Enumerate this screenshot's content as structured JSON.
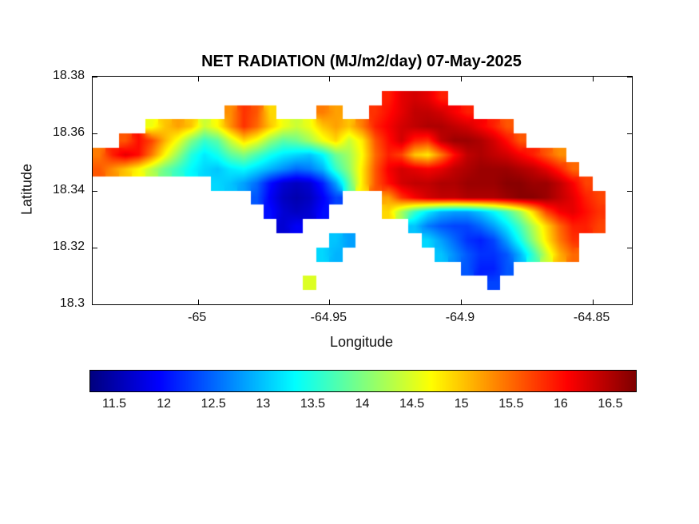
{
  "figure": {
    "background": "#ffffff"
  },
  "chart_data": {
    "type": "heatmap",
    "title": "NET RADIATION (MJ/m2/day) 07-May-2025",
    "xlabel": "Longitude",
    "ylabel": "Latitude",
    "xlim": [
      -65.04,
      -64.835
    ],
    "ylim": [
      18.3,
      18.38
    ],
    "xticks": [
      -65,
      -64.95,
      -64.9,
      -64.85
    ],
    "xtick_labels": [
      "-65",
      "-64.95",
      "-64.9",
      "-64.85"
    ],
    "yticks": [
      18.3,
      18.32,
      18.34,
      18.36,
      18.38
    ],
    "ytick_labels": [
      "18.3",
      "18.32",
      "18.34",
      "18.36",
      "18.38"
    ],
    "colormap": "jet",
    "vmin": 11.25,
    "vmax": 16.75,
    "colorbar_ticks": [
      11.5,
      12,
      12.5,
      13,
      13.5,
      14,
      14.5,
      15,
      15.5,
      16,
      16.5
    ],
    "colorbar_tick_labels": [
      "11.5",
      "12",
      "12.5",
      "13",
      "13.5",
      "14",
      "14.5",
      "15",
      "15.5",
      "16",
      "16.5"
    ],
    "grid": {
      "comment": "net radiation MJ/m2/day on lon-lat grid, null = water",
      "lon_start": -65.0375,
      "lon_step": 0.005,
      "lat_start": 18.3725,
      "lat_step": -0.005,
      "values": [
        [
          null,
          null,
          null,
          null,
          null,
          null,
          null,
          null,
          null,
          null,
          null,
          null,
          null,
          null,
          null,
          null,
          null,
          null,
          null,
          null,
          null,
          null,
          15.9,
          16.2,
          16.3,
          16.2,
          15.9,
          null,
          null,
          null,
          null,
          null,
          null,
          null,
          null,
          null,
          null,
          null,
          null,
          null,
          null
        ],
        [
          null,
          null,
          null,
          null,
          null,
          null,
          null,
          null,
          null,
          null,
          15.3,
          15.8,
          15.6,
          14.9,
          null,
          null,
          null,
          15.4,
          15.2,
          null,
          null,
          15.8,
          16.0,
          16.2,
          16.4,
          16.4,
          16.3,
          16.1,
          15.9,
          null,
          null,
          null,
          null,
          null,
          null,
          null,
          null,
          null,
          null,
          null,
          null
        ],
        [
          null,
          null,
          null,
          null,
          14.6,
          15.0,
          15.2,
          15.0,
          14.4,
          14.7,
          15.3,
          15.8,
          15.5,
          15.0,
          14.6,
          14.4,
          14.6,
          15.0,
          15.2,
          15.0,
          15.4,
          15.9,
          16.1,
          16.3,
          16.4,
          16.5,
          16.5,
          16.4,
          16.3,
          16.1,
          15.9,
          15.6,
          null,
          null,
          null,
          null,
          null,
          null,
          null,
          null,
          null
        ],
        [
          null,
          null,
          15.6,
          16.0,
          15.7,
          15.1,
          14.6,
          14.0,
          13.6,
          13.8,
          14.4,
          14.9,
          14.6,
          14.1,
          13.8,
          13.9,
          14.2,
          14.6,
          14.9,
          14.4,
          14.8,
          15.6,
          16.0,
          16.3,
          15.9,
          15.8,
          16.4,
          16.6,
          16.6,
          16.5,
          16.3,
          16.0,
          15.6,
          null,
          null,
          null,
          null,
          null,
          null,
          null,
          null
        ],
        [
          15.4,
          15.9,
          16.2,
          16.0,
          15.4,
          14.7,
          14.1,
          13.5,
          13.2,
          13.4,
          13.8,
          14.0,
          13.7,
          13.4,
          13.2,
          13.1,
          13.0,
          13.3,
          13.9,
          14.2,
          14.7,
          15.5,
          15.9,
          15.7,
          15.0,
          14.8,
          15.4,
          16.0,
          16.4,
          16.5,
          16.4,
          16.3,
          16.1,
          15.9,
          15.6,
          15.3,
          null,
          null,
          null,
          null,
          null
        ],
        [
          15.6,
          15.3,
          15.0,
          14.7,
          14.3,
          13.9,
          13.6,
          13.3,
          13.1,
          13.0,
          13.2,
          13.3,
          13.1,
          12.9,
          12.7,
          12.5,
          12.6,
          12.9,
          13.6,
          14.1,
          14.8,
          15.6,
          16.1,
          16.3,
          16.2,
          16.1,
          16.2,
          16.4,
          16.5,
          16.6,
          16.6,
          16.6,
          16.5,
          16.4,
          16.2,
          15.9,
          15.5,
          null,
          null,
          null,
          null
        ],
        [
          null,
          null,
          null,
          null,
          null,
          null,
          null,
          null,
          null,
          13.1,
          13.0,
          12.8,
          12.5,
          12.0,
          11.7,
          11.6,
          11.7,
          12.1,
          12.8,
          13.8,
          14.8,
          15.6,
          16.0,
          16.3,
          16.4,
          16.4,
          16.5,
          16.5,
          16.6,
          16.6,
          16.6,
          16.7,
          16.7,
          16.6,
          16.6,
          16.4,
          16.1,
          15.7,
          null,
          null,
          null
        ],
        [
          null,
          null,
          null,
          null,
          null,
          null,
          null,
          null,
          null,
          null,
          null,
          null,
          12.4,
          11.9,
          11.6,
          11.5,
          11.6,
          11.9,
          12.3,
          null,
          null,
          null,
          15.2,
          15.8,
          16.1,
          16.3,
          16.4,
          16.4,
          16.5,
          16.5,
          16.5,
          16.6,
          16.7,
          16.7,
          16.6,
          16.4,
          16.2,
          15.9,
          15.7,
          null,
          null
        ],
        [
          null,
          null,
          null,
          null,
          null,
          null,
          null,
          null,
          null,
          null,
          null,
          null,
          null,
          12.0,
          11.7,
          11.6,
          11.7,
          12.0,
          null,
          null,
          null,
          null,
          14.9,
          14.2,
          13.6,
          13.2,
          12.9,
          12.8,
          12.8,
          13.0,
          13.3,
          13.7,
          14.2,
          14.9,
          15.7,
          16.1,
          16.2,
          16.0,
          15.8,
          null,
          null
        ],
        [
          null,
          null,
          null,
          null,
          null,
          null,
          null,
          null,
          null,
          null,
          null,
          null,
          null,
          null,
          11.7,
          11.9,
          null,
          null,
          null,
          null,
          null,
          null,
          null,
          null,
          13.0,
          12.6,
          12.4,
          12.3,
          12.3,
          12.5,
          12.8,
          13.2,
          13.7,
          14.3,
          14.9,
          15.5,
          15.9,
          15.9,
          15.7,
          null,
          null
        ],
        [
          null,
          null,
          null,
          null,
          null,
          null,
          null,
          null,
          null,
          null,
          null,
          null,
          null,
          null,
          null,
          null,
          null,
          null,
          13.0,
          12.8,
          null,
          null,
          null,
          null,
          null,
          13.1,
          12.8,
          12.5,
          12.2,
          12.1,
          12.3,
          12.8,
          13.4,
          14.1,
          14.8,
          15.4,
          15.8,
          null,
          null,
          null,
          null
        ],
        [
          null,
          null,
          null,
          null,
          null,
          null,
          null,
          null,
          null,
          null,
          null,
          null,
          null,
          null,
          null,
          null,
          null,
          13.1,
          12.9,
          null,
          null,
          null,
          null,
          null,
          null,
          null,
          13.0,
          12.7,
          12.4,
          12.2,
          12.2,
          12.4,
          12.9,
          13.6,
          14.4,
          15.1,
          15.5,
          null,
          null,
          null,
          null
        ],
        [
          null,
          null,
          null,
          null,
          null,
          null,
          null,
          null,
          null,
          null,
          null,
          null,
          null,
          null,
          null,
          null,
          null,
          null,
          null,
          null,
          null,
          null,
          null,
          null,
          null,
          null,
          null,
          null,
          12.4,
          12.1,
          12.1,
          12.4,
          null,
          null,
          null,
          null,
          null,
          null,
          null,
          null,
          null
        ],
        [
          null,
          null,
          null,
          null,
          null,
          null,
          null,
          null,
          null,
          null,
          null,
          null,
          null,
          null,
          null,
          null,
          14.5,
          null,
          null,
          null,
          null,
          null,
          null,
          null,
          null,
          null,
          null,
          null,
          null,
          null,
          12.3,
          null,
          null,
          null,
          null,
          null,
          null,
          null,
          null,
          null,
          null
        ],
        [
          null,
          null,
          null,
          null,
          null,
          null,
          null,
          null,
          null,
          null,
          null,
          null,
          null,
          null,
          null,
          null,
          null,
          null,
          null,
          null,
          null,
          null,
          null,
          null,
          null,
          null,
          null,
          null,
          null,
          null,
          null,
          null,
          null,
          null,
          null,
          null,
          null,
          null,
          null,
          null,
          null
        ]
      ]
    }
  }
}
